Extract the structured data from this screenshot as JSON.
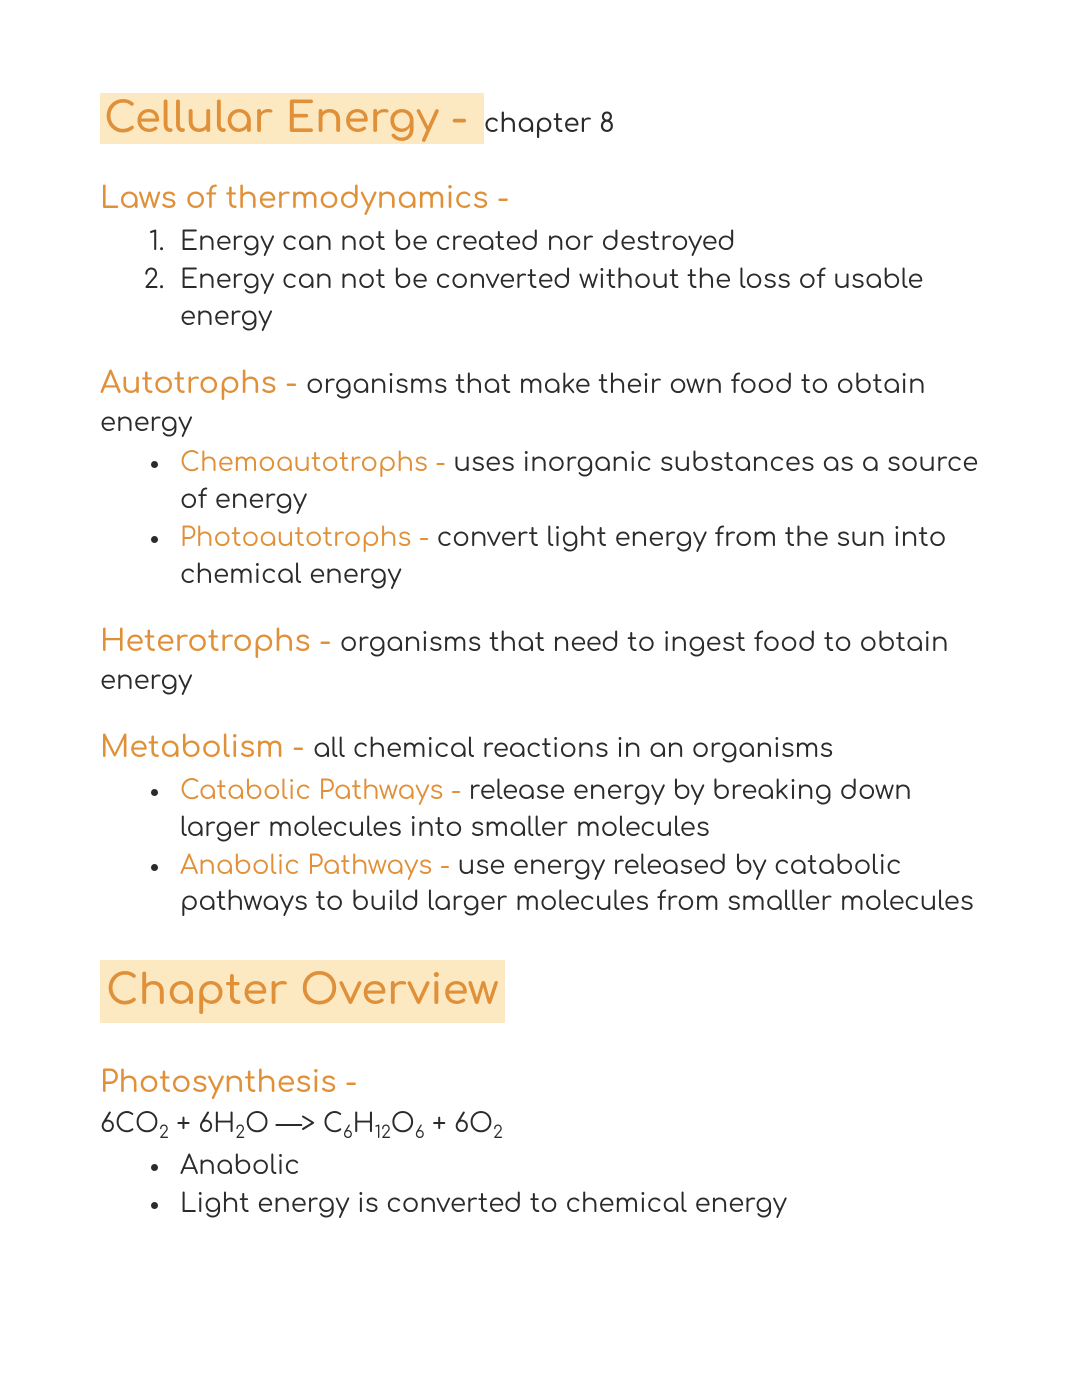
{
  "colors": {
    "accent": "#e09038",
    "highlight_bg": "#fce9c2",
    "text": "#2b2b2b",
    "page_bg": "#ffffff"
  },
  "typography": {
    "title_fontsize": 42,
    "section_title_fontsize": 30,
    "body_fontsize": 26
  },
  "title": {
    "main": "Cellular Energy - ",
    "sub": "chapter 8"
  },
  "laws": {
    "heading": "Laws of thermodynamics -",
    "items": [
      "Energy can not be created nor destroyed",
      "Energy can not be converted without the loss of usable energy"
    ]
  },
  "autotrophs": {
    "heading": "Autotrophs - ",
    "def": "organisms that make their own food to obtain energy",
    "items": [
      {
        "term": "Chemoautotrophs - ",
        "def": "uses inorganic substances as a source of energy"
      },
      {
        "term": "Photoautotrophs - ",
        "def": "convert light energy from the sun into chemical energy"
      }
    ]
  },
  "heterotrophs": {
    "heading": "Heterotrophs - ",
    "def": "organisms that need to ingest food to obtain energy"
  },
  "metabolism": {
    "heading": "Metabolism - ",
    "def": "all chemical reactions in an organisms",
    "items": [
      {
        "term": "Catabolic Pathways - ",
        "def": "release energy by breaking down larger molecules into smaller molecules"
      },
      {
        "term": "Anabolic Pathways - ",
        "def": "use energy released by catabolic pathways to build larger molecules from smalller molecules"
      }
    ]
  },
  "overview": {
    "heading": "Chapter Overview"
  },
  "photosynthesis": {
    "heading": "Photosynthesis -",
    "equation": {
      "p1": "6CO",
      "s1": "2",
      "p2": " + 6H",
      "s2": "2",
      "p3": "O —> C",
      "s3": "6",
      "p4": "H",
      "s4": "12",
      "p5": "O",
      "s5": "6",
      "p6": " + 6O",
      "s6": "2"
    },
    "items": [
      "Anabolic",
      "Light energy is converted to chemical energy"
    ]
  }
}
